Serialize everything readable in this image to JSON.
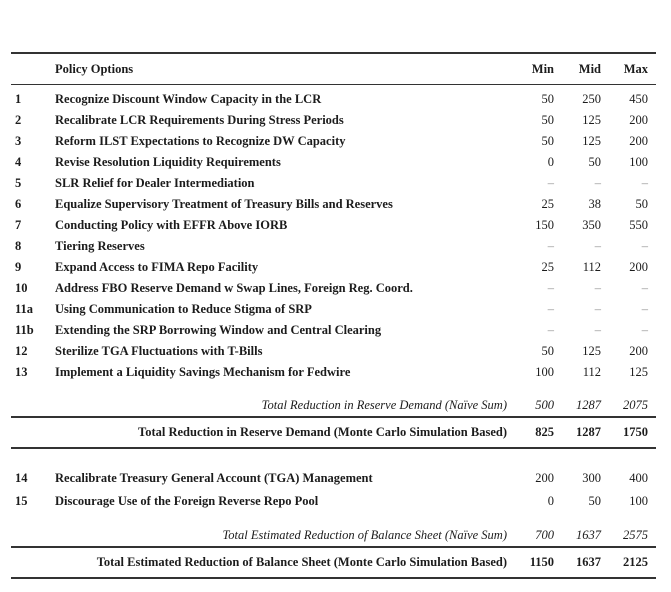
{
  "table": {
    "header": {
      "policy_options": "Policy Options",
      "min": "Min",
      "mid": "Mid",
      "max": "Max"
    },
    "rows": [
      {
        "num": "1",
        "label": "Recognize Discount Window Capacity in the LCR",
        "min": "50",
        "mid": "250",
        "max": "450"
      },
      {
        "num": "2",
        "label": "Recalibrate LCR Requirements During Stress Periods",
        "min": "50",
        "mid": "125",
        "max": "200"
      },
      {
        "num": "3",
        "label": "Reform ILST Expectations to Recognize DW Capacity",
        "min": "50",
        "mid": "125",
        "max": "200"
      },
      {
        "num": "4",
        "label": "Revise Resolution Liquidity Requirements",
        "min": "0",
        "mid": "50",
        "max": "100"
      },
      {
        "num": "5",
        "label": "SLR Relief for Dealer Intermediation",
        "min": "–",
        "mid": "–",
        "max": "–"
      },
      {
        "num": "6",
        "label": "Equalize Supervisory Treatment of Treasury Bills and Reserves",
        "min": "25",
        "mid": "38",
        "max": "50"
      },
      {
        "num": "7",
        "label": "Conducting Policy with EFFR Above IORB",
        "min": "150",
        "mid": "350",
        "max": "550"
      },
      {
        "num": "8",
        "label": "Tiering Reserves",
        "min": "–",
        "mid": "–",
        "max": "–"
      },
      {
        "num": "9",
        "label": "Expand Access to FIMA Repo Facility",
        "min": "25",
        "mid": "112",
        "max": "200"
      },
      {
        "num": "10",
        "label": "Address FBO Reserve Demand w Swap Lines, Foreign Reg. Coord.",
        "min": "–",
        "mid": "–",
        "max": "–"
      },
      {
        "num": "11a",
        "label": "Using Communication to Reduce Stigma of SRP",
        "min": "–",
        "mid": "–",
        "max": "–"
      },
      {
        "num": "11b",
        "label": "Extending the SRP Borrowing Window and Central Clearing",
        "min": "–",
        "mid": "–",
        "max": "–"
      },
      {
        "num": "12",
        "label": "Sterilize TGA Fluctuations with T-Bills",
        "min": "50",
        "mid": "125",
        "max": "200"
      },
      {
        "num": "13",
        "label": "Implement a Liquidity Savings Mechanism for Fedwire",
        "min": "100",
        "mid": "112",
        "max": "125"
      }
    ],
    "reserve_naive": {
      "label": "Total Reduction in Reserve Demand (Naïve Sum)",
      "min": "500",
      "mid": "1287",
      "max": "2075"
    },
    "reserve_mc": {
      "label": "Total Reduction in Reserve Demand (Monte Carlo Simulation Based)",
      "min": "825",
      "mid": "1287",
      "max": "1750"
    },
    "rows2": [
      {
        "num": "14",
        "label": "Recalibrate Treasury General Account (TGA) Management",
        "min": "200",
        "mid": "300",
        "max": "400"
      },
      {
        "num": "15",
        "label": "Discourage Use of the Foreign Reverse Repo Pool",
        "min": "0",
        "mid": "50",
        "max": "100"
      }
    ],
    "balance_naive": {
      "label": "Total Estimated Reduction of Balance Sheet (Naïve Sum)",
      "min": "700",
      "mid": "1637",
      "max": "2575"
    },
    "balance_mc": {
      "label": "Total Estimated Reduction of Balance Sheet (Monte Carlo Simulation Based)",
      "min": "1150",
      "mid": "1637",
      "max": "2125"
    }
  },
  "colors": {
    "text": "#1c1c1c",
    "rule": "#333333",
    "dash": "#8f8f8f",
    "background": "#ffffff"
  }
}
